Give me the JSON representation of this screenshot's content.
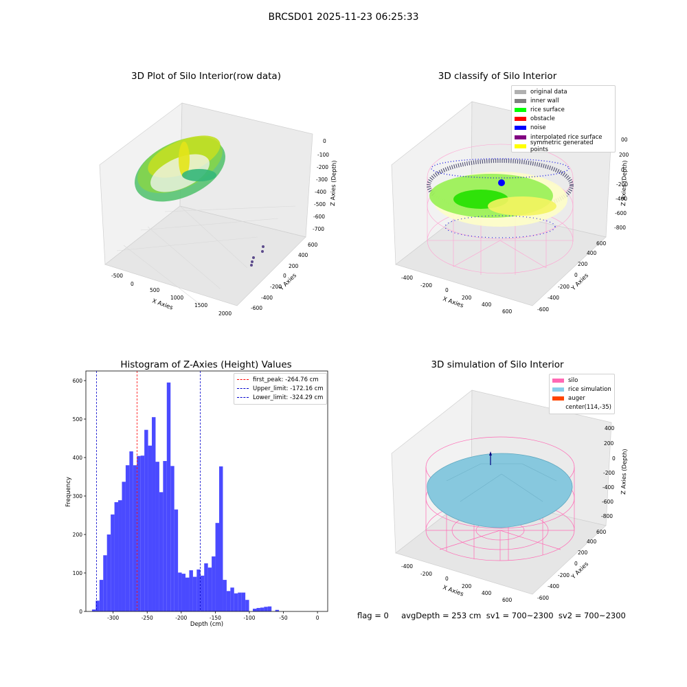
{
  "figure": {
    "suptitle": "BRCSD01 2025-11-23 06:25:33",
    "footer": "flag = 0     avgDepth = 253 cm  sv1 = 700~2300  sv2 = 700~2300"
  },
  "panels": {
    "raw": {
      "title": "3D Plot of Silo Interior(row data)",
      "xlabel": "X Axies",
      "ylabel": "Y Axies",
      "zlabel": "Z Axies (Depth)",
      "xticks": [
        "-500",
        "0",
        "500",
        "1000",
        "1500",
        "2000"
      ],
      "yticks": [
        "-600",
        "-400",
        "-200",
        "0",
        "200",
        "400",
        "600"
      ],
      "zticks": [
        "0",
        "-100",
        "-200",
        "-300",
        "-400",
        "-500",
        "-600",
        "-700"
      ],
      "colors": {
        "surface_light": "#d9e021",
        "surface_mid": "#7ad151",
        "surface_dark": "#22a884",
        "outliers": "#5b4a8b"
      }
    },
    "classify": {
      "title": "3D classify of Silo Interior",
      "xlabel": "X Axies",
      "ylabel": "Y Axies",
      "zlabel": "Z Axies (Depth)",
      "xticks": [
        "-400",
        "-200",
        "0",
        "200",
        "400",
        "600"
      ],
      "yticks": [
        "-600",
        "-400",
        "-200",
        "0",
        "200",
        "400",
        "600"
      ],
      "zticks": [
        "200",
        "0",
        "-200",
        "-400",
        "-600",
        "-800"
      ],
      "zticks_partial": "00",
      "legend": [
        {
          "label": "original data",
          "color": "#b0b0b0"
        },
        {
          "label": "inner wall",
          "color": "#808080"
        },
        {
          "label": "rice surface",
          "color": "#00ff00"
        },
        {
          "label": "obstacle",
          "color": "#ff0000"
        },
        {
          "label": "noise",
          "color": "#0000ff"
        },
        {
          "label": "interpolated rice surface",
          "color": "#800080"
        },
        {
          "label": "symmetric generated points",
          "color": "#ffff00"
        }
      ]
    },
    "histogram": {
      "title": "Histogram of Z-Axies (Height) Values",
      "xlabel": "Depth (cm)",
      "ylabel": "Frequency",
      "xticks": [
        "-300",
        "-250",
        "-200",
        "-150",
        "-100",
        "-50",
        "0"
      ],
      "yticks": [
        "0",
        "100",
        "200",
        "300",
        "400",
        "500",
        "600"
      ],
      "legend": [
        {
          "label": "first_peak: -264.76 cm",
          "color": "#ff0000"
        },
        {
          "label": "Upper_limit: -172.16 cm",
          "color": "#0000cd"
        },
        {
          "label": "Lower_limit: -324.29 cm",
          "color": "#0000cd"
        }
      ]
    },
    "simulation": {
      "title": "3D simulation of Silo Interior",
      "xlabel": "X Axies",
      "ylabel": "Y Axies",
      "zlabel": "Z Axies (Depth)",
      "xticks": [
        "-400",
        "-200",
        "0",
        "200",
        "400",
        "600"
      ],
      "yticks": [
        "-600",
        "-400",
        "-200",
        "0",
        "200",
        "400",
        "600"
      ],
      "zticks": [
        "400",
        "200",
        "0",
        "-200",
        "-400",
        "-600",
        "-800"
      ],
      "legend": [
        {
          "label": "silo",
          "color": "#ff69b4"
        },
        {
          "label": "rice simulation",
          "color": "#87ceeb"
        },
        {
          "label": "auger",
          "color": "#ff4500"
        },
        {
          "label": "center(114,-35)",
          "color": "none"
        }
      ]
    }
  },
  "chart_data": [
    {
      "type": "bar",
      "title": "Histogram of Z-Axies (Height) Values",
      "xlabel": "Depth (cm)",
      "ylabel": "Frequency",
      "bin_start": -331,
      "bin_width": 5.49,
      "values": [
        5,
        28,
        82,
        146,
        200,
        252,
        284,
        289,
        337,
        380,
        416,
        380,
        404,
        405,
        472,
        431,
        505,
        389,
        310,
        391,
        595,
        378,
        265,
        101,
        98,
        88,
        107,
        90,
        109,
        93,
        125,
        114,
        143,
        230,
        377,
        82,
        53,
        62,
        47,
        49,
        49,
        30,
        0,
        7,
        9,
        10,
        12,
        13,
        0,
        4
      ],
      "xlim": [
        -340,
        15
      ],
      "ylim": [
        0,
        625
      ],
      "vlines": [
        {
          "label": "first_peak: -264.76 cm",
          "x": -264.76,
          "color": "#ff0000"
        },
        {
          "label": "Upper_limit: -172.16 cm",
          "x": -172.16,
          "color": "#0000cd"
        },
        {
          "label": "Lower_limit: -324.29 cm",
          "x": -324.29,
          "color": "#0000cd"
        }
      ],
      "bar_color": "#4a4aff",
      "legend_position": "top-right"
    }
  ]
}
